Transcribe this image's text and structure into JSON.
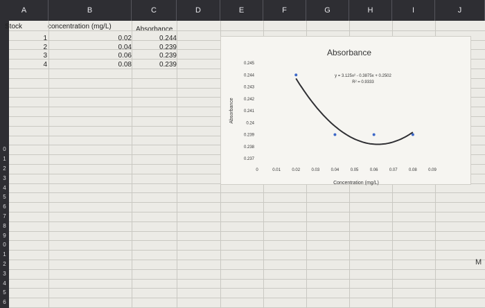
{
  "columns": [
    "A",
    "B",
    "C",
    "D",
    "E",
    "F",
    "G",
    "H",
    "I",
    "J"
  ],
  "rows": [
    "",
    "",
    "",
    "",
    "",
    "",
    "",
    "",
    "",
    "",
    "",
    "",
    "",
    "0",
    "1",
    "2",
    "3",
    "4",
    "5",
    "6",
    "7",
    "8",
    "9",
    "0",
    "1",
    "2",
    "3",
    "4",
    "5",
    "6"
  ],
  "table": {
    "stock_label": "Stock",
    "headers": [
      "concentration (mg/L)",
      "Absorbance"
    ],
    "rows": [
      {
        "stock": "1",
        "concentration": "0.02",
        "absorbance": "0.244"
      },
      {
        "stock": "2",
        "concentration": "0.04",
        "absorbance": "0.239"
      },
      {
        "stock": "3",
        "concentration": "0.06",
        "absorbance": "0.239"
      },
      {
        "stock": "4",
        "concentration": "0.08",
        "absorbance": "0.239"
      }
    ]
  },
  "chart_data": {
    "type": "scatter",
    "title": "Absorbance",
    "xlabel": "Concentration (mg/L)",
    "ylabel": "Absorbance",
    "x_ticks": [
      "0",
      "0.01",
      "0.02",
      "0.03",
      "0.04",
      "0.05",
      "0.06",
      "0.07",
      "0.08",
      "0.09"
    ],
    "y_ticks": [
      "0.245",
      "0.244",
      "0.243",
      "0.242",
      "0.241",
      "0.24",
      "0.239",
      "0.238",
      "0.237"
    ],
    "xlim": [
      0,
      0.09
    ],
    "ylim": [
      0.237,
      0.245
    ],
    "points": [
      {
        "x": 0.02,
        "y": 0.244
      },
      {
        "x": 0.04,
        "y": 0.239
      },
      {
        "x": 0.06,
        "y": 0.239
      },
      {
        "x": 0.08,
        "y": 0.239
      }
    ],
    "trendline": {
      "type": "polynomial",
      "order": 2,
      "a": 3.125,
      "b": -0.3875,
      "c": 0.2502,
      "x_range": [
        0.02,
        0.08
      ]
    },
    "equation": "y = 3.125x² - 0.3875x + 0.2502",
    "r_squared": "R² = 0.9333",
    "colors": {
      "point": "#3d68c8",
      "trend": "#2f2f33"
    }
  },
  "edge_letter": "M"
}
